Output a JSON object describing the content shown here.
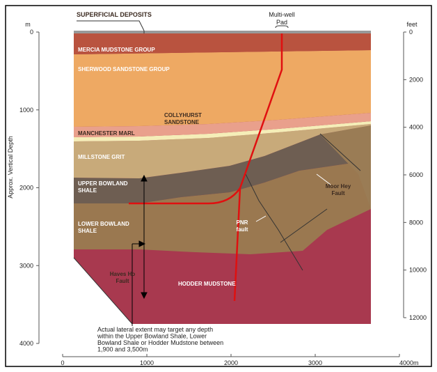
{
  "header": {
    "top_label": "SUPERFICIAL DEPOSITS",
    "pad_label": [
      "Multi-well",
      "Pad"
    ]
  },
  "left_axis": {
    "unit": "m",
    "title": "Approx. Vertical Depth",
    "ticks": [
      0,
      1000,
      2000,
      3000,
      4000
    ]
  },
  "right_axis": {
    "unit": "feet",
    "ticks": [
      0,
      2000,
      4000,
      6000,
      8000,
      10000,
      12000
    ]
  },
  "bottom_axis": {
    "ticks": [
      0,
      1000,
      2000,
      3000,
      {
        "value": 4000,
        "label": "4000m"
      }
    ]
  },
  "layers": [
    {
      "label": [
        "MERCIA MUDSTONE GROUP"
      ]
    },
    {
      "label": [
        "SHERWOOD SANDSTONE GROUP"
      ]
    },
    {
      "label": [
        "COLLYHURST",
        "SANDSTONE"
      ]
    },
    {
      "label": [
        "MANCHESTER MARL"
      ]
    },
    {
      "label": [
        "MILLSTONE GRIT"
      ]
    },
    {
      "label": [
        "UPPER BOWLAND",
        "SHALE"
      ]
    },
    {
      "label": [
        "LOWER BOWLAND",
        "SHALE"
      ]
    },
    {
      "label": [
        "HODDER MUDSTONE"
      ]
    }
  ],
  "faults": [
    {
      "label": [
        "Moor Hey",
        "Fault"
      ]
    },
    {
      "label": [
        "PNR",
        "fault"
      ]
    },
    {
      "label": [
        "Haves Ho",
        "Fault"
      ]
    }
  ],
  "annotation": [
    "Actual lateral extent may target any depth",
    "within the Upper Bowland Shale, Lower",
    "Bowland Shale or Hodder Mudstone between",
    "1,900 and 3,500m"
  ]
}
